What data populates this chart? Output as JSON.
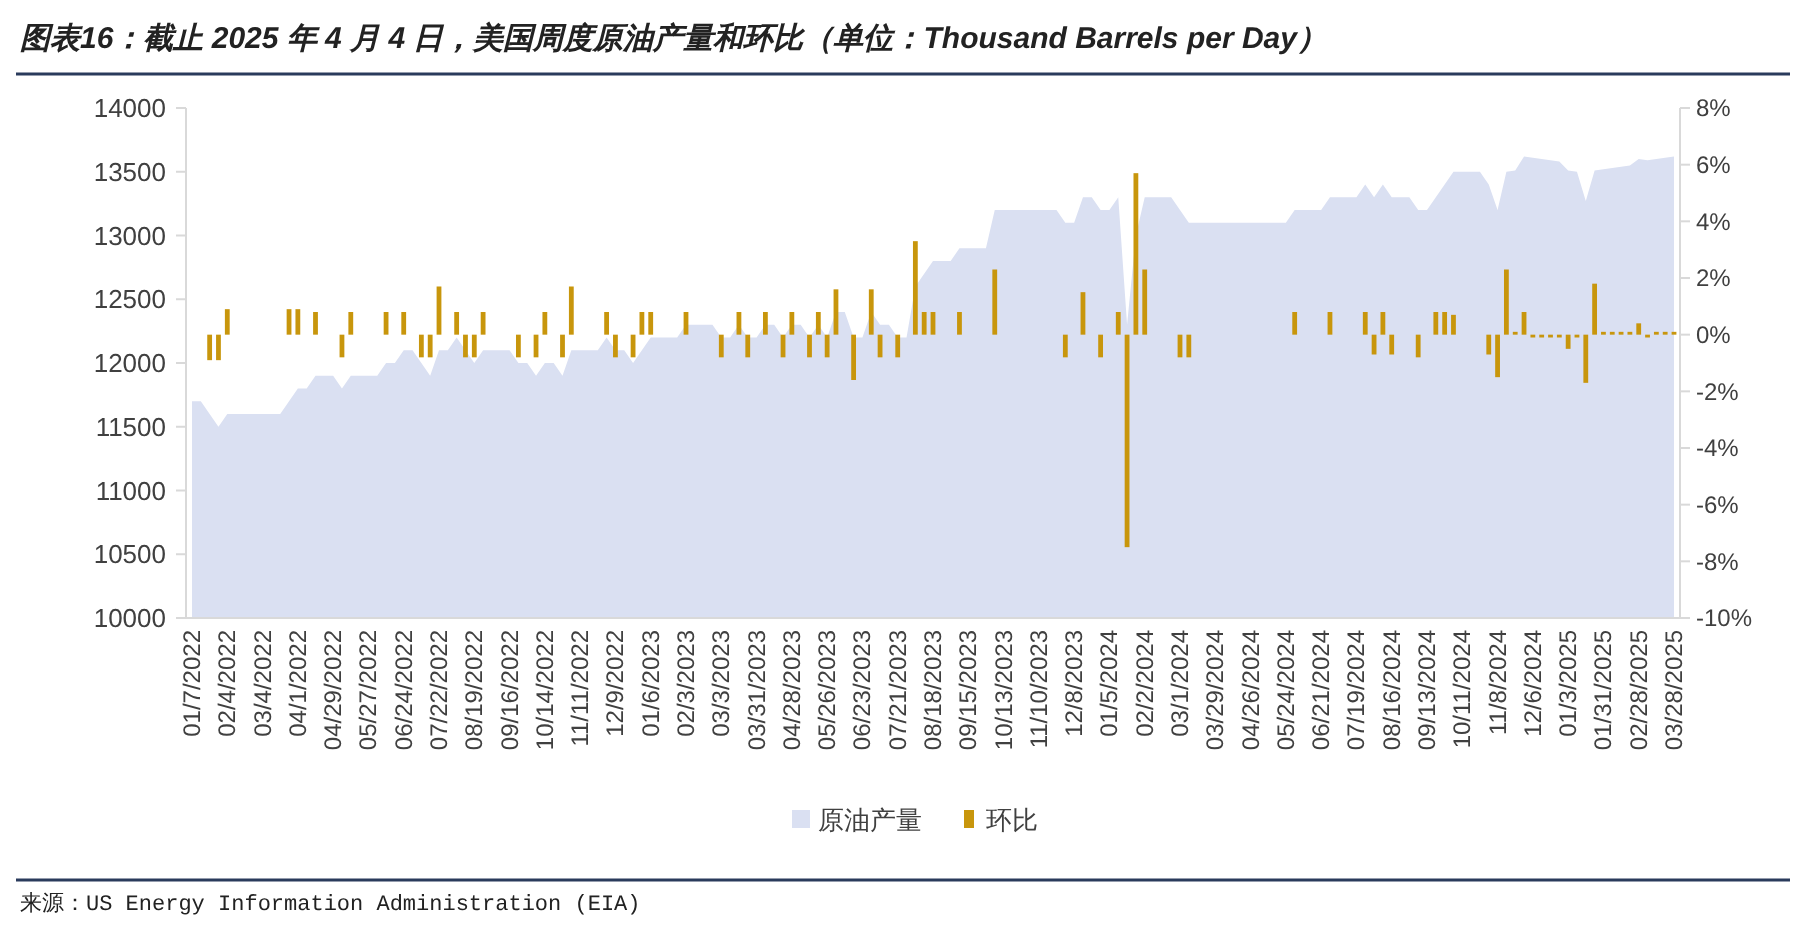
{
  "chart_data": {
    "type": "area",
    "title": "图表16：截止 2025 年 4 月 4 日，美国周度原油产量和环比（单位：Thousand Barrels per Day）",
    "annotations": [
      "来源：US Energy Information Administration (EIA)"
    ],
    "categories": [
      "01/7/2022",
      null,
      null,
      null,
      "02/4/2022",
      null,
      null,
      null,
      "03/4/2022",
      null,
      null,
      null,
      "04/1/2022",
      null,
      null,
      null,
      "04/29/2022",
      null,
      null,
      null,
      "05/27/2022",
      null,
      null,
      null,
      "06/24/2022",
      null,
      null,
      null,
      "07/22/2022",
      null,
      null,
      null,
      "08/19/2022",
      null,
      null,
      null,
      "09/16/2022",
      null,
      null,
      null,
      "10/14/2022",
      null,
      null,
      null,
      "11/11/2022",
      null,
      null,
      null,
      "12/9/2022",
      null,
      null,
      null,
      "01/6/2023",
      null,
      null,
      null,
      "02/3/2023",
      null,
      null,
      null,
      "03/3/2023",
      null,
      null,
      null,
      "03/31/2023",
      null,
      null,
      null,
      "04/28/2023",
      null,
      null,
      null,
      "05/26/2023",
      null,
      null,
      null,
      "06/23/2023",
      null,
      null,
      null,
      "07/21/2023",
      null,
      null,
      null,
      "08/18/2023",
      null,
      null,
      null,
      "09/15/2023",
      null,
      null,
      null,
      "10/13/2023",
      null,
      null,
      null,
      "11/10/2023",
      null,
      null,
      null,
      "12/8/2023",
      null,
      null,
      null,
      "01/5/2024",
      null,
      null,
      null,
      "02/2/2024",
      null,
      null,
      null,
      "03/1/2024",
      null,
      null,
      null,
      "03/29/2024",
      null,
      null,
      null,
      "04/26/2024",
      null,
      null,
      null,
      "05/24/2024",
      null,
      null,
      null,
      "06/21/2024",
      null,
      null,
      null,
      "07/19/2024",
      null,
      null,
      null,
      "08/16/2024",
      null,
      null,
      null,
      "09/13/2024",
      null,
      null,
      null,
      "10/11/2024",
      null,
      null,
      null,
      "11/8/2024",
      null,
      null,
      null,
      "12/6/2024",
      null,
      null,
      null,
      "01/3/2025",
      null,
      null,
      null,
      "01/31/2025",
      null,
      null,
      null,
      "02/28/2025",
      null,
      null,
      null,
      "03/28/2025"
    ],
    "series": [
      {
        "name": "原油产量",
        "color": "#dae0f2",
        "values": [
          11700,
          11700,
          11600,
          11500,
          11600,
          11600,
          11600,
          11600,
          11600,
          11600,
          11600,
          11700,
          11800,
          11800,
          11900,
          11900,
          11900,
          11800,
          11900,
          11900,
          11900,
          11900,
          12000,
          12000,
          12100,
          12100,
          12000,
          11900,
          12100,
          12100,
          12200,
          12100,
          12000,
          12100,
          12100,
          12100,
          12100,
          12000,
          12000,
          11900,
          12000,
          12000,
          11900,
          12100,
          12100,
          12100,
          12100,
          12200,
          12100,
          12100,
          12000,
          12100,
          12200,
          12200,
          12200,
          12200,
          12300,
          12300,
          12300,
          12300,
          12200,
          12200,
          12300,
          12200,
          12200,
          12300,
          12300,
          12200,
          12300,
          12300,
          12200,
          12300,
          12200,
          12400,
          12400,
          12200,
          12200,
          12400,
          12300,
          12300,
          12200,
          12200,
          12600,
          12700,
          12800,
          12800,
          12800,
          12900,
          12900,
          12900,
          12900,
          13200,
          13200,
          13200,
          13200,
          13200,
          13200,
          13200,
          13200,
          13100,
          13100,
          13300,
          13300,
          13200,
          13200,
          13300,
          12300,
          13000,
          13300,
          13300,
          13300,
          13300,
          13200,
          13100,
          13100,
          13100,
          13100,
          13100,
          13100,
          13100,
          13100,
          13100,
          13100,
          13100,
          13100,
          13200,
          13200,
          13200,
          13200,
          13300,
          13300,
          13300,
          13300,
          13400,
          13300,
          13400,
          13300,
          13300,
          13300,
          13200,
          13200,
          13300,
          13400,
          13500,
          13500,
          13500,
          13500,
          13400,
          13200,
          13500,
          13510,
          13620,
          13610,
          13600,
          13590,
          13580,
          13510,
          13500,
          13270,
          13510,
          13520,
          13530,
          13540,
          13550,
          13600,
          13590,
          13600,
          13610,
          13620
        ]
      },
      {
        "name": "环比",
        "type": "bar",
        "axis": "y2",
        "color": "#c8960c",
        "values": [
          null,
          0,
          -0.9,
          -0.9,
          0.9,
          0,
          0,
          0,
          0,
          0,
          0,
          0.9,
          0.9,
          0,
          0.8,
          0,
          0,
          -0.8,
          0.8,
          0,
          0,
          0,
          0.8,
          0,
          0.8,
          0,
          -0.8,
          -0.8,
          1.7,
          0,
          0.8,
          -0.8,
          -0.8,
          0.8,
          0,
          0,
          0,
          -0.8,
          0,
          -0.8,
          0.8,
          0,
          -0.8,
          1.7,
          0,
          0,
          0,
          0.8,
          -0.8,
          0,
          -0.8,
          0.8,
          0.8,
          0,
          0,
          0,
          0.8,
          0,
          0,
          0,
          -0.8,
          0,
          0.8,
          -0.8,
          0,
          0.8,
          0,
          -0.8,
          0.8,
          0,
          -0.8,
          0.8,
          -0.8,
          1.6,
          0,
          -1.6,
          0,
          1.6,
          -0.8,
          0,
          -0.8,
          0,
          3.3,
          0.8,
          0.8,
          0,
          0,
          0.8,
          0,
          0,
          0,
          2.3,
          0,
          0,
          0,
          0,
          0,
          0,
          0,
          -0.8,
          0,
          1.5,
          0,
          -0.8,
          0,
          0.8,
          -7.5,
          5.7,
          2.3,
          0,
          0,
          0,
          -0.8,
          -0.8,
          0,
          0,
          0,
          0,
          0,
          0,
          0,
          0,
          0,
          0,
          0,
          0.8,
          0,
          0,
          0,
          0.8,
          0,
          0,
          0,
          0.8,
          -0.7,
          0.8,
          -0.7,
          0,
          0,
          -0.8,
          0,
          0.8,
          0.8,
          0.7,
          0,
          0,
          0,
          -0.7,
          -1.5,
          2.3,
          0.1,
          0.8,
          -0.1,
          -0.1,
          -0.1,
          -0.1,
          -0.5,
          -0.1,
          -1.7,
          1.8,
          0.1,
          0.1,
          0.1,
          0.1,
          0.4,
          -0.1,
          0.1,
          0.1,
          0.1
        ]
      }
    ],
    "ylim": [
      10000,
      14000
    ],
    "yticks": [
      10000,
      10500,
      11000,
      11500,
      12000,
      12500,
      13000,
      13500,
      14000
    ],
    "y2lim": [
      -10,
      8
    ],
    "y2ticks": [
      {
        "value": -10,
        "label": "-10%"
      },
      {
        "value": -8,
        "label": "-8%"
      },
      {
        "value": -6,
        "label": "-6%"
      },
      {
        "value": -4,
        "label": "-4%"
      },
      {
        "value": -2,
        "label": "-2%"
      },
      {
        "value": 0,
        "label": "0%"
      },
      {
        "value": 2,
        "label": "2%"
      },
      {
        "value": 4,
        "label": "4%"
      },
      {
        "value": 6,
        "label": "6%"
      },
      {
        "value": 8,
        "label": "8%"
      }
    ],
    "legend": "bottom"
  }
}
